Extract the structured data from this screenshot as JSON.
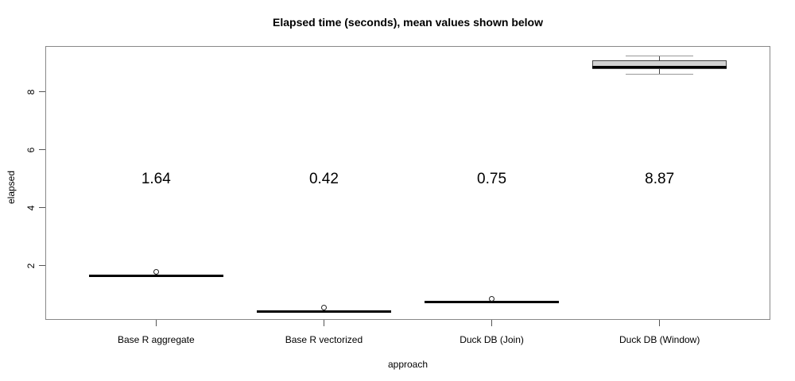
{
  "chart_data": {
    "type": "boxplot",
    "title": "Elapsed time (seconds), mean values shown below",
    "xlabel": "approach",
    "ylabel": "elapsed",
    "categories": [
      "Base R aggregate",
      "Base R vectorized",
      "Duck DB (Join)",
      "Duck DB (Window)"
    ],
    "means": [
      1.64,
      0.42,
      0.75,
      8.87
    ],
    "mean_labels": [
      "1.64",
      "0.42",
      "0.75",
      "8.87"
    ],
    "series": [
      {
        "name": "Base R aggregate",
        "min": 1.62,
        "q1": 1.63,
        "median": 1.64,
        "q3": 1.65,
        "max": 1.66,
        "outliers": [
          1.79
        ]
      },
      {
        "name": "Base R vectorized",
        "min": 0.39,
        "q1": 0.4,
        "median": 0.4,
        "q3": 0.41,
        "max": 0.41,
        "outliers": [
          0.54
        ]
      },
      {
        "name": "Duck DB (Join)",
        "min": 0.73,
        "q1": 0.74,
        "median": 0.75,
        "q3": 0.75,
        "max": 0.76,
        "outliers": [
          0.86
        ]
      },
      {
        "name": "Duck DB (Window)",
        "min": 8.62,
        "q1": 8.79,
        "median": 8.87,
        "q3": 9.1,
        "max": 9.26,
        "outliers": []
      }
    ],
    "y_ticks": [
      2,
      4,
      6,
      8
    ],
    "ylim": [
      0.12,
      9.59
    ],
    "x_positions": [
      1,
      2,
      3,
      4
    ],
    "xlim": [
      0.34,
      4.66
    ],
    "box_width": 0.8,
    "cap_width": 0.4,
    "mean_label_y": 4.97,
    "grid": false,
    "legend": false,
    "colors": {
      "box_fill": "#d3d3d3",
      "median": "#000000",
      "whisker": "#999999",
      "axis": "#888888",
      "text": "#000000"
    }
  }
}
